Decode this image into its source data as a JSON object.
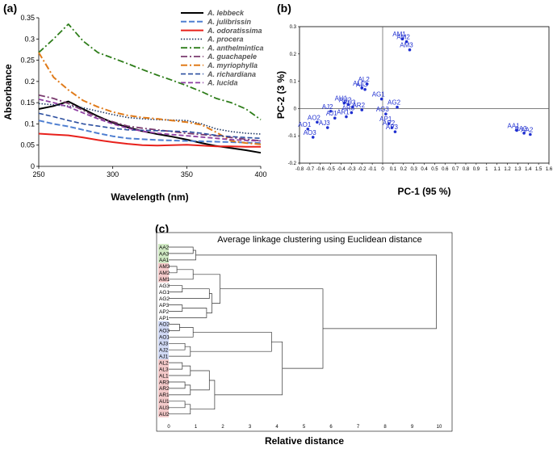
{
  "panels": {
    "a": "(a)",
    "b": "(b)",
    "c": "(c)"
  },
  "chart_data": [
    {
      "type": "line",
      "title": "",
      "xlabel": "Wavelength (nm)",
      "ylabel": "Absorbance",
      "xlim": [
        250,
        400
      ],
      "ylim": [
        0,
        0.35
      ],
      "xticks": [
        250,
        300,
        350,
        400
      ],
      "yticks": [
        0,
        0.05,
        0.1,
        0.15,
        0.2,
        0.25,
        0.3,
        0.35
      ],
      "x": [
        250,
        260,
        270,
        280,
        290,
        300,
        310,
        320,
        330,
        340,
        350,
        360,
        370,
        380,
        390,
        400
      ],
      "series": [
        {
          "name": "A. lebbeck",
          "color": "#000000",
          "dash": "",
          "width": 2,
          "values": [
            0.135,
            0.142,
            0.153,
            0.135,
            0.118,
            0.103,
            0.092,
            0.083,
            0.076,
            0.07,
            0.063,
            0.055,
            0.048,
            0.043,
            0.038,
            0.032
          ]
        },
        {
          "name": "A. julibrissin",
          "color": "#4f7fd1",
          "dash": "7,3",
          "width": 2,
          "values": [
            0.108,
            0.1,
            0.094,
            0.086,
            0.078,
            0.071,
            0.066,
            0.064,
            0.062,
            0.061,
            0.06,
            0.059,
            0.058,
            0.057,
            0.056,
            0.055
          ]
        },
        {
          "name": "A. odoratissima",
          "color": "#e8211c",
          "dash": "",
          "width": 2,
          "values": [
            0.077,
            0.075,
            0.073,
            0.068,
            0.062,
            0.057,
            0.053,
            0.05,
            0.049,
            0.05,
            0.051,
            0.049,
            0.047,
            0.047,
            0.046,
            0.046
          ]
        },
        {
          "name": "A. procera",
          "color": "#1f3864",
          "dash": "1.5,2",
          "width": 1.6,
          "values": [
            0.148,
            0.145,
            0.142,
            0.138,
            0.13,
            0.122,
            0.115,
            0.112,
            0.11,
            0.109,
            0.108,
            0.1,
            0.088,
            0.082,
            0.078,
            0.076
          ]
        },
        {
          "name": "A. anthelmintica",
          "color": "#2e7d1a",
          "dash": "8,3,2,3",
          "width": 1.8,
          "values": [
            0.268,
            0.3,
            0.335,
            0.295,
            0.268,
            0.255,
            0.242,
            0.228,
            0.215,
            0.203,
            0.19,
            0.176,
            0.16,
            0.15,
            0.135,
            0.11
          ]
        },
        {
          "name": "A. guachapele",
          "color": "#7a3b6e",
          "dash": "8,3,2,3",
          "width": 1.8,
          "values": [
            0.168,
            0.16,
            0.148,
            0.132,
            0.115,
            0.105,
            0.095,
            0.09,
            0.086,
            0.082,
            0.078,
            0.075,
            0.072,
            0.068,
            0.064,
            0.06
          ]
        },
        {
          "name": "A. myriophylla",
          "color": "#e07b1a",
          "dash": "8,3,2,3",
          "width": 2,
          "values": [
            0.268,
            0.21,
            0.18,
            0.155,
            0.14,
            0.128,
            0.12,
            0.115,
            0.112,
            0.108,
            0.104,
            0.098,
            0.08,
            0.06,
            0.055,
            0.052
          ]
        },
        {
          "name": "A. richardiana",
          "color": "#2c4fa0",
          "dash": "6,3",
          "width": 1.6,
          "values": [
            0.125,
            0.117,
            0.108,
            0.1,
            0.095,
            0.09,
            0.086,
            0.085,
            0.084,
            0.083,
            0.082,
            0.078,
            0.073,
            0.07,
            0.068,
            0.066
          ]
        },
        {
          "name": "A. lucida",
          "color": "#8e3fa3",
          "dash": "6,3",
          "width": 1.8,
          "values": [
            0.158,
            0.15,
            0.14,
            0.126,
            0.112,
            0.1,
            0.09,
            0.083,
            0.078,
            0.075,
            0.072,
            0.069,
            0.066,
            0.063,
            0.061,
            0.06
          ]
        }
      ]
    },
    {
      "type": "scatter",
      "title": "",
      "xlabel": "PC-1 (95 %)",
      "ylabel": "PC-2 (3 %)",
      "xlim": [
        -0.8,
        1.6
      ],
      "ylim": [
        -0.2,
        0.3
      ],
      "xticks": [
        -0.8,
        -0.7,
        -0.6,
        -0.5,
        -0.4,
        -0.3,
        -0.2,
        -0.1,
        0,
        0.1,
        0.2,
        0.3,
        0.4,
        0.5,
        0.6,
        0.7,
        0.8,
        0.9,
        1,
        1.1,
        1.2,
        1.3,
        1.4,
        1.5,
        1.6
      ],
      "xticklabels": [
        "-0.8",
        "-0.7",
        "-0.6",
        "-0.5",
        "-0.4",
        "-0.3",
        "-0.2",
        "-0.1",
        "0",
        "0.1",
        "0.2",
        "0.3",
        "0.4",
        "0.5",
        "0.6",
        "0.7",
        "0.8",
        "0.9",
        "1",
        "1.1",
        "1.2",
        "1.3",
        "1.4",
        "1.5",
        "1.6"
      ],
      "yticks": [
        -0.2,
        -0.1,
        0,
        0.1,
        0.2,
        0.3
      ],
      "yticklabels": [
        "-0.2",
        "-0.1",
        "0",
        "0.1",
        "0.2",
        "0.3"
      ],
      "points": [
        {
          "label": "AM1",
          "x": 0.19,
          "y": 0.255
        },
        {
          "label": "AM2",
          "x": 0.23,
          "y": 0.245
        },
        {
          "label": "AM3",
          "x": 0.26,
          "y": 0.215
        },
        {
          "label": "AL2",
          "x": -0.15,
          "y": 0.09
        },
        {
          "label": "AL1",
          "x": -0.2,
          "y": 0.075
        },
        {
          "label": "AL3",
          "x": -0.17,
          "y": 0.07
        },
        {
          "label": "AU1",
          "x": -0.37,
          "y": 0.02
        },
        {
          "label": "AU2",
          "x": -0.33,
          "y": 0.015
        },
        {
          "label": "AU3",
          "x": -0.29,
          "y": 0.005
        },
        {
          "label": "AR2",
          "x": -0.2,
          "y": -0.005
        },
        {
          "label": "AR3",
          "x": -0.3,
          "y": -0.015
        },
        {
          "label": "AR1",
          "x": -0.35,
          "y": -0.03
        },
        {
          "label": "AJ2",
          "x": -0.5,
          "y": -0.01
        },
        {
          "label": "AJ1",
          "x": -0.46,
          "y": -0.035
        },
        {
          "label": "AJ3",
          "x": -0.53,
          "y": -0.07
        },
        {
          "label": "AG1",
          "x": -0.01,
          "y": 0.035
        },
        {
          "label": "AG2",
          "x": 0.14,
          "y": 0.005
        },
        {
          "label": "AG3",
          "x": 0.03,
          "y": -0.02
        },
        {
          "label": "AP1",
          "x": 0.06,
          "y": -0.055
        },
        {
          "label": "AP2",
          "x": 0.09,
          "y": -0.07
        },
        {
          "label": "AP3",
          "x": 0.12,
          "y": -0.085
        },
        {
          "label": "AO1",
          "x": -0.72,
          "y": -0.075
        },
        {
          "label": "AO2",
          "x": -0.63,
          "y": -0.05
        },
        {
          "label": "AO3",
          "x": -0.67,
          "y": -0.105
        },
        {
          "label": "AA1",
          "x": 1.29,
          "y": -0.08
        },
        {
          "label": "AA2",
          "x": 1.42,
          "y": -0.095
        },
        {
          "label": "AA3",
          "x": 1.36,
          "y": -0.09
        }
      ]
    },
    {
      "type": "dendrogram",
      "title": "Average linkage clustering using Euclidean distance",
      "xlabel": "Relative distance",
      "xlim": [
        0,
        10
      ],
      "xticks": [
        0,
        1,
        2,
        3,
        4,
        5,
        6,
        7,
        8,
        9,
        10
      ],
      "leaves": [
        {
          "label": "AA2",
          "color": "#cfe8c2"
        },
        {
          "label": "AA3",
          "color": "#cfe8c2"
        },
        {
          "label": "AA1",
          "color": "#cfe8c2"
        },
        {
          "label": "AM3",
          "color": "#f2c7c7"
        },
        {
          "label": "AM2",
          "color": "#f2c7c7"
        },
        {
          "label": "AM1",
          "color": "#f2c7c7"
        },
        {
          "label": "AG3",
          "color": "#ffffff"
        },
        {
          "label": "AG1",
          "color": "#ffffff"
        },
        {
          "label": "AG2",
          "color": "#ffffff"
        },
        {
          "label": "AP3",
          "color": "#ffffff"
        },
        {
          "label": "AP2",
          "color": "#ffffff"
        },
        {
          "label": "AP1",
          "color": "#ffffff"
        },
        {
          "label": "AO2",
          "color": "#cdd6f2"
        },
        {
          "label": "AO3",
          "color": "#cdd6f2"
        },
        {
          "label": "AO1",
          "color": "#cdd6f2"
        },
        {
          "label": "AJ3",
          "color": "#cdd6f2"
        },
        {
          "label": "AJ2",
          "color": "#cdd6f2"
        },
        {
          "label": "AJ1",
          "color": "#cdd6f2"
        },
        {
          "label": "AL2",
          "color": "#f2c7c7"
        },
        {
          "label": "AL3",
          "color": "#f2c7c7"
        },
        {
          "label": "AL1",
          "color": "#f2c7c7"
        },
        {
          "label": "AR3",
          "color": "#f2c7c7"
        },
        {
          "label": "AR2",
          "color": "#f2c7c7"
        },
        {
          "label": "AR1",
          "color": "#f2c7c7"
        },
        {
          "label": "AU1",
          "color": "#f2c7c7"
        },
        {
          "label": "AU3",
          "color": "#f2c7c7"
        },
        {
          "label": "AU2",
          "color": "#f2c7c7"
        }
      ],
      "merges": [
        {
          "a": "L0",
          "b": "L1",
          "h": 0.9
        },
        {
          "a": "N0",
          "b": "L2",
          "h": 1.0
        },
        {
          "a": "L3",
          "b": "L4",
          "h": 0.3
        },
        {
          "a": "N2",
          "b": "L5",
          "h": 0.9
        },
        {
          "a": "L6",
          "b": "L7",
          "h": 0.5
        },
        {
          "a": "N4",
          "b": "L8",
          "h": 1.5
        },
        {
          "a": "L9",
          "b": "L10",
          "h": 0.5
        },
        {
          "a": "N6",
          "b": "L11",
          "h": 1.4
        },
        {
          "a": "N5",
          "b": "N7",
          "h": 1.6
        },
        {
          "a": "N3",
          "b": "N8",
          "h": 1.9
        },
        {
          "a": "L12",
          "b": "L13",
          "h": 0.4
        },
        {
          "a": "N10",
          "b": "L14",
          "h": 0.9
        },
        {
          "a": "L15",
          "b": "L16",
          "h": 0.6
        },
        {
          "a": "N12",
          "b": "L17",
          "h": 0.8
        },
        {
          "a": "N11",
          "b": "N13",
          "h": 3.8
        },
        {
          "a": "L18",
          "b": "L19",
          "h": 0.5
        },
        {
          "a": "N15",
          "b": "L20",
          "h": 0.8
        },
        {
          "a": "L21",
          "b": "L22",
          "h": 0.6
        },
        {
          "a": "N17",
          "b": "L23",
          "h": 0.8
        },
        {
          "a": "N16",
          "b": "N18",
          "h": 1.5
        },
        {
          "a": "L24",
          "b": "L25",
          "h": 0.6
        },
        {
          "a": "N20",
          "b": "L26",
          "h": 0.8
        },
        {
          "a": "N19",
          "b": "N21",
          "h": 1.7
        },
        {
          "a": "N14",
          "b": "N22",
          "h": 4.2
        },
        {
          "a": "N9",
          "b": "N23",
          "h": 5.7
        },
        {
          "a": "N1",
          "b": "N24",
          "h": 9.9
        }
      ]
    }
  ]
}
